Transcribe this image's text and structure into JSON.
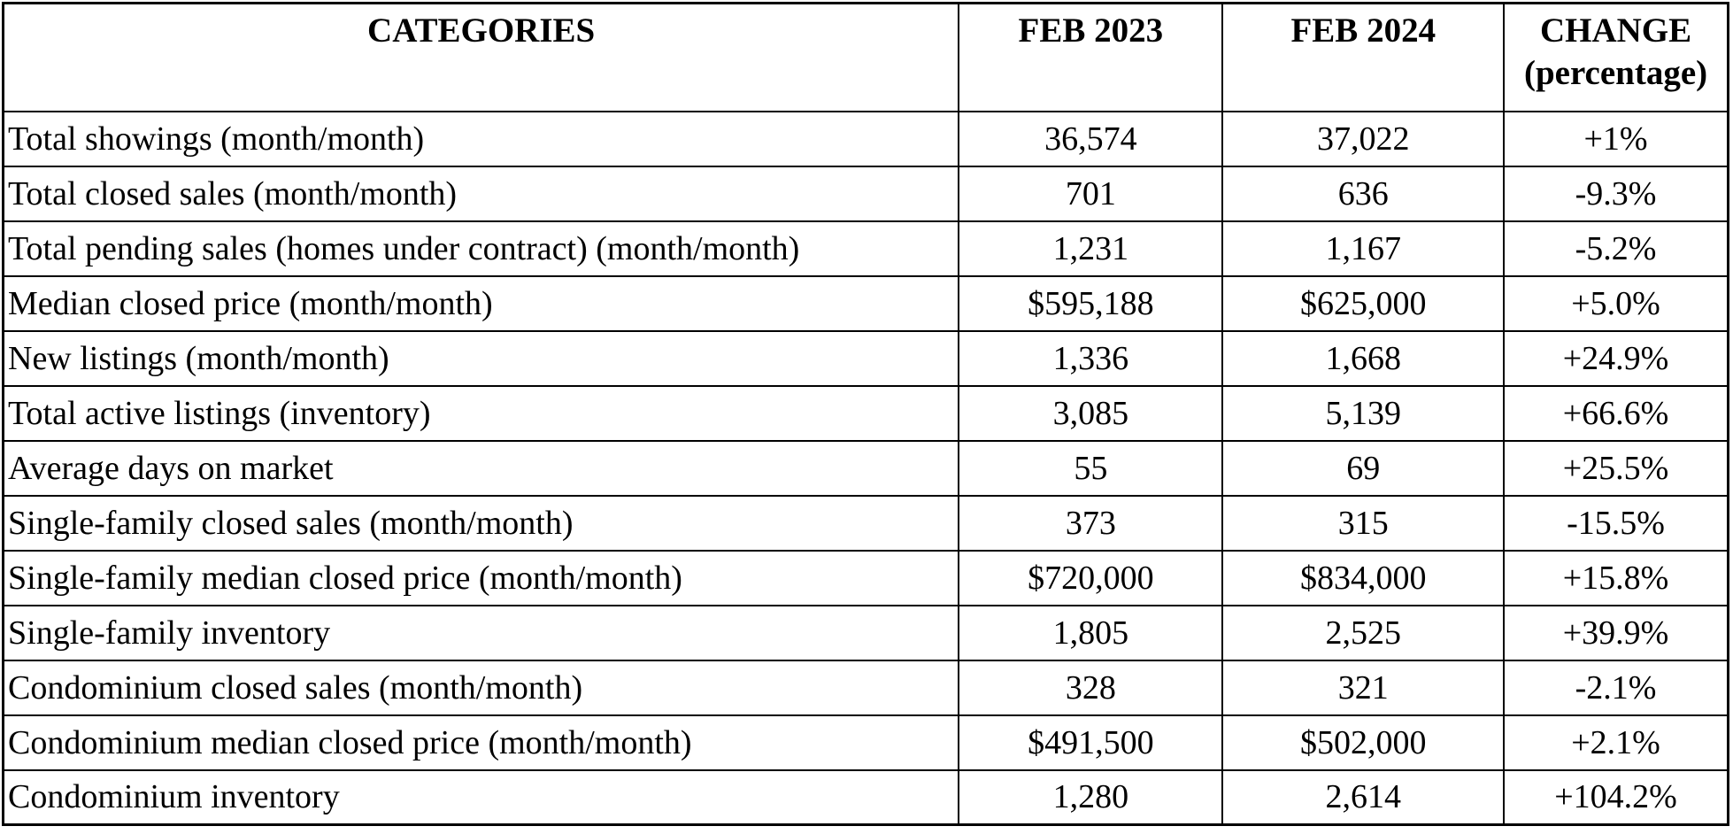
{
  "table": {
    "columns": [
      "CATEGORIES",
      "FEB 2023",
      "FEB 2024",
      "CHANGE (percentage)"
    ],
    "rows": [
      {
        "category": "Total showings (month/month)",
        "feb2023": "36,574",
        "feb2024": "37,022",
        "change": "+1%"
      },
      {
        "category": "Total closed sales (month/month)",
        "feb2023": "701",
        "feb2024": "636",
        "change": "-9.3%"
      },
      {
        "category": "Total pending sales (homes under contract) (month/month)",
        "feb2023": "1,231",
        "feb2024": "1,167",
        "change": "-5.2%"
      },
      {
        "category": "Median closed price (month/month)",
        "feb2023": "$595,188",
        "feb2024": "$625,000",
        "change": "+5.0%"
      },
      {
        "category": "New listings (month/month)",
        "feb2023": "1,336",
        "feb2024": "1,668",
        "change": "+24.9%"
      },
      {
        "category": "Total active listings (inventory)",
        "feb2023": "3,085",
        "feb2024": "5,139",
        "change": "+66.6%"
      },
      {
        "category": "Average days on market",
        "feb2023": "55",
        "feb2024": "69",
        "change": "+25.5%"
      },
      {
        "category": "Single-family closed sales (month/month)",
        "feb2023": "373",
        "feb2024": "315",
        "change": "-15.5%"
      },
      {
        "category": "Single-family median closed price (month/month)",
        "feb2023": "$720,000",
        "feb2024": "$834,000",
        "change": "+15.8%"
      },
      {
        "category": "Single-family inventory",
        "feb2023": "1,805",
        "feb2024": "2,525",
        "change": "+39.9%"
      },
      {
        "category": "Condominium closed sales (month/month)",
        "feb2023": "328",
        "feb2024": "321",
        "change": "-2.1%"
      },
      {
        "category": "Condominium median closed price (month/month)",
        "feb2023": "$491,500",
        "feb2024": "$502,000",
        "change": "+2.1%"
      },
      {
        "category": "Condominium inventory",
        "feb2023": "1,280",
        "feb2024": "2,614",
        "change": "+104.2%"
      }
    ],
    "colors": {
      "border": "#000000",
      "text": "#000000",
      "background": "#ffffff"
    }
  },
  "chart_data": {
    "type": "table",
    "title": "",
    "columns": [
      "CATEGORIES",
      "FEB 2023",
      "FEB 2024",
      "CHANGE (percentage)"
    ],
    "rows": [
      [
        "Total showings (month/month)",
        "36,574",
        "37,022",
        "+1%"
      ],
      [
        "Total closed sales (month/month)",
        "701",
        "636",
        "-9.3%"
      ],
      [
        "Total pending sales (homes under contract) (month/month)",
        "1,231",
        "1,167",
        "-5.2%"
      ],
      [
        "Median closed price (month/month)",
        "$595,188",
        "$625,000",
        "+5.0%"
      ],
      [
        "New listings (month/month)",
        "1,336",
        "1,668",
        "+24.9%"
      ],
      [
        "Total active listings (inventory)",
        "3,085",
        "5,139",
        "+66.6%"
      ],
      [
        "Average days on market",
        "55",
        "69",
        "+25.5%"
      ],
      [
        "Single-family closed sales (month/month)",
        "373",
        "315",
        "-15.5%"
      ],
      [
        "Single-family median closed price (month/month)",
        "$720,000",
        "$834,000",
        "+15.8%"
      ],
      [
        "Single-family inventory",
        "1,805",
        "2,525",
        "+39.9%"
      ],
      [
        "Condominium closed sales (month/month)",
        "328",
        "321",
        "-2.1%"
      ],
      [
        "Condominium median closed price (month/month)",
        "$491,500",
        "$502,000",
        "+2.1%"
      ],
      [
        "Condominium inventory",
        "1,280",
        "2,614",
        "+104.2%"
      ]
    ]
  }
}
